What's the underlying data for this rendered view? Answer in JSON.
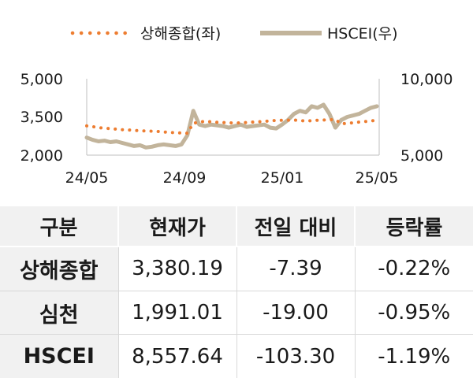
{
  "chart_data": {
    "type": "line",
    "legend": {
      "placement": "top"
    },
    "y_left": {
      "ticks": [
        "5,000",
        "3,500",
        "2,000"
      ],
      "range": [
        2000,
        5000
      ]
    },
    "y_right": {
      "ticks": [
        "10,000",
        "5,000"
      ],
      "range": [
        5000,
        10000
      ]
    },
    "x_ticks": [
      "24/05",
      "24/09",
      "25/01",
      "25/05"
    ],
    "series": [
      {
        "name": "상해종합(좌)",
        "axis": "left",
        "style": "dotted",
        "color": "#ed7d31",
        "values": [
          3150,
          3120,
          3080,
          3060,
          3040,
          3020,
          3000,
          2990,
          2970,
          2960,
          2950,
          2940,
          2930,
          2910,
          2890,
          2880,
          2870,
          2860,
          3250,
          3300,
          3330,
          3310,
          3290,
          3280,
          3270,
          3260,
          3270,
          3280,
          3300,
          3310,
          3320,
          3350,
          3360,
          3370,
          3370,
          3380,
          3360,
          3340,
          3350,
          3370,
          3380,
          3390,
          3400,
          3230,
          3250,
          3270,
          3300,
          3320,
          3340,
          3380
        ]
      },
      {
        "name": "HSCEI(우)",
        "axis": "right",
        "style": "solid",
        "color": "#c2b49b",
        "values": [
          6150,
          6000,
          5900,
          5950,
          5850,
          5900,
          5800,
          5700,
          5600,
          5650,
          5500,
          5550,
          5650,
          5700,
          5650,
          5600,
          5700,
          6300,
          7900,
          7000,
          6900,
          7000,
          6950,
          6900,
          6800,
          6900,
          7000,
          6850,
          6900,
          6950,
          7000,
          6800,
          6750,
          7000,
          7300,
          7700,
          7900,
          7800,
          8200,
          8100,
          8300,
          7700,
          6800,
          7300,
          7500,
          7600,
          7700,
          7900,
          8100,
          8200
        ]
      }
    ]
  },
  "table": {
    "headers": [
      "구분",
      "현재가",
      "전일 대비",
      "등락률"
    ],
    "rows": [
      {
        "name": "상해종합",
        "price": "3,380.19",
        "change": "-7.39",
        "rate": "-0.22%"
      },
      {
        "name": "심천",
        "price": "1,991.01",
        "change": "-19.00",
        "rate": "-0.95%"
      },
      {
        "name": "HSCEI",
        "price": "8,557.64",
        "change": "-103.30",
        "rate": "-1.19%"
      }
    ]
  }
}
